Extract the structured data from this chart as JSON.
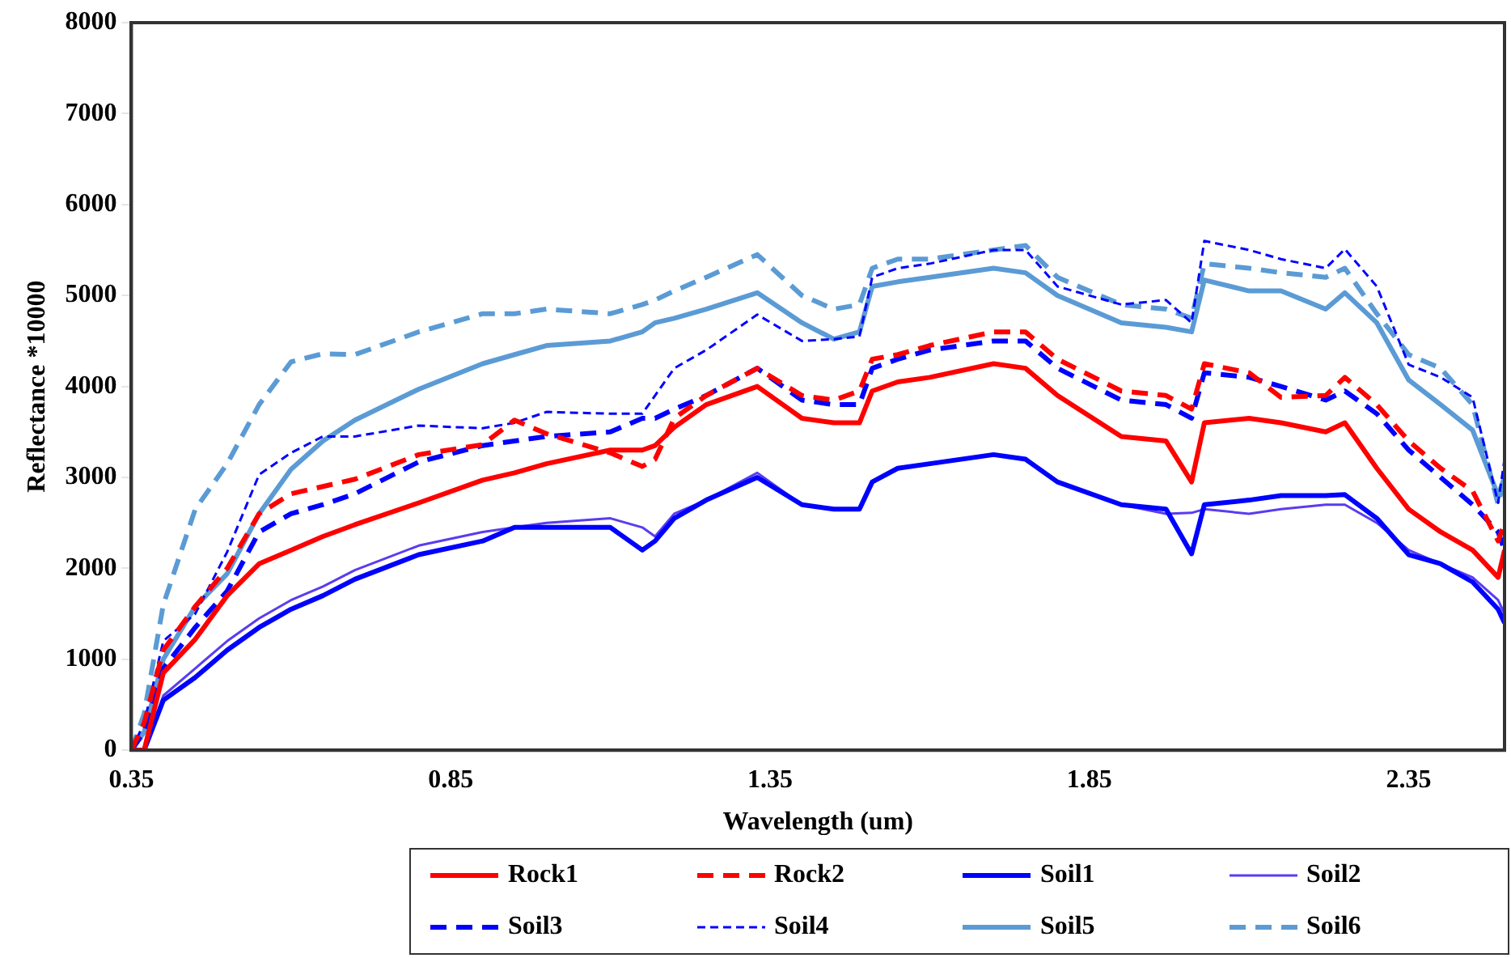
{
  "chart_data": {
    "type": "line",
    "xlabel": "Wavelength (um)",
    "ylabel": "Reflectance *10000",
    "x": [
      0.35,
      0.37,
      0.4,
      0.45,
      0.5,
      0.55,
      0.6,
      0.65,
      0.7,
      0.8,
      0.9,
      0.95,
      1.0,
      1.1,
      1.15,
      1.17,
      1.2,
      1.25,
      1.33,
      1.4,
      1.45,
      1.49,
      1.51,
      1.55,
      1.6,
      1.7,
      1.75,
      1.8,
      1.9,
      1.97,
      2.01,
      2.03,
      2.1,
      2.15,
      2.22,
      2.25,
      2.3,
      2.35,
      2.4,
      2.45,
      2.49,
      2.5
    ],
    "xlim": [
      0.35,
      2.5
    ],
    "xticks": [
      0.35,
      0.85,
      1.35,
      1.85,
      2.35
    ],
    "ylim": [
      0,
      8000
    ],
    "yticks": [
      0,
      1000,
      2000,
      3000,
      4000,
      5000,
      6000,
      7000,
      8000
    ],
    "grid": false,
    "legend": "bottom",
    "marker": "none",
    "series": [
      {
        "name": "Rock1",
        "color": "#ff0000",
        "line_style": "solid",
        "values": [
          0,
          0,
          850,
          1220,
          1700,
          2050,
          2200,
          2350,
          2480,
          2720,
          2970,
          3050,
          3150,
          3300,
          3300,
          3350,
          3550,
          3800,
          4000,
          3650,
          3600,
          3600,
          3950,
          4050,
          4100,
          4250,
          4200,
          3900,
          3450,
          3400,
          2950,
          3600,
          3650,
          3600,
          3500,
          3600,
          3100,
          2650,
          2400,
          2200,
          1900,
          2200
        ]
      },
      {
        "name": "Rock2",
        "color": "#ff0000",
        "line_style": "dashed",
        "values": [
          0,
          300,
          1100,
          1580,
          2000,
          2600,
          2820,
          2900,
          2980,
          3250,
          3360,
          3630,
          3480,
          3270,
          3120,
          3200,
          3650,
          3900,
          4200,
          3900,
          3850,
          3950,
          4300,
          4350,
          4450,
          4600,
          4600,
          4300,
          3950,
          3900,
          3750,
          4250,
          4150,
          3880,
          3900,
          4100,
          3800,
          3400,
          3100,
          2850,
          2300,
          2500
        ]
      },
      {
        "name": "Soil1",
        "color": "#0000ff",
        "line_style": "solid",
        "values": [
          0,
          0,
          550,
          800,
          1100,
          1350,
          1550,
          1700,
          1880,
          2150,
          2300,
          2450,
          2450,
          2450,
          2200,
          2300,
          2550,
          2750,
          3000,
          2700,
          2650,
          2650,
          2950,
          3100,
          3150,
          3250,
          3200,
          2950,
          2700,
          2650,
          2160,
          2700,
          2750,
          2800,
          2800,
          2810,
          2550,
          2150,
          2050,
          1850,
          1550,
          1400
        ]
      },
      {
        "name": "Soil2",
        "color": "#5a3cf0",
        "line_style": "solid",
        "values": [
          0,
          0,
          600,
          900,
          1200,
          1450,
          1650,
          1800,
          1980,
          2250,
          2400,
          2450,
          2500,
          2550,
          2450,
          2350,
          2600,
          2750,
          3050,
          2700,
          2650,
          2650,
          2950,
          3100,
          3150,
          3250,
          3200,
          2950,
          2700,
          2600,
          2610,
          2650,
          2600,
          2650,
          2700,
          2700,
          2500,
          2200,
          2050,
          1900,
          1650,
          1500
        ]
      },
      {
        "name": "Soil3",
        "color": "#0000ff",
        "line_style": "dashed",
        "values": [
          0,
          200,
          900,
          1350,
          1750,
          2400,
          2600,
          2700,
          2820,
          3170,
          3350,
          3400,
          3450,
          3500,
          3650,
          3650,
          3750,
          3900,
          4200,
          3850,
          3800,
          3800,
          4200,
          4300,
          4400,
          4500,
          4500,
          4200,
          3850,
          3800,
          3650,
          4150,
          4100,
          4000,
          3850,
          3950,
          3700,
          3300,
          3000,
          2700,
          2400,
          2200
        ]
      },
      {
        "name": "Soil4",
        "color": "#0000ff",
        "line_style": "dotted",
        "values": [
          0,
          300,
          1200,
          1500,
          2180,
          3030,
          3270,
          3450,
          3450,
          3570,
          3540,
          3600,
          3720,
          3700,
          3700,
          3900,
          4200,
          4400,
          4790,
          4500,
          4520,
          4550,
          5200,
          5300,
          5350,
          5500,
          5500,
          5100,
          4900,
          4950,
          4700,
          5600,
          5500,
          5400,
          5300,
          5510,
          5100,
          4240,
          4100,
          3880,
          2720,
          3200
        ]
      },
      {
        "name": "Soil5",
        "color": "#5b9bd5",
        "line_style": "solid",
        "values": [
          0,
          200,
          1000,
          1580,
          1940,
          2600,
          3090,
          3400,
          3630,
          3970,
          4250,
          4350,
          4450,
          4500,
          4600,
          4700,
          4750,
          4850,
          5030,
          4700,
          4520,
          4600,
          5100,
          5150,
          5200,
          5300,
          5250,
          5000,
          4700,
          4650,
          4600,
          5170,
          5050,
          5050,
          4850,
          5030,
          4700,
          4070,
          3800,
          3520,
          2800,
          3000
        ]
      },
      {
        "name": "Soil6",
        "color": "#5b9bd5",
        "line_style": "dashed",
        "values": [
          0,
          400,
          1600,
          2650,
          3150,
          3800,
          4270,
          4360,
          4350,
          4600,
          4800,
          4800,
          4850,
          4800,
          4900,
          4950,
          5050,
          5200,
          5450,
          5000,
          4850,
          4900,
          5300,
          5400,
          5400,
          5500,
          5550,
          5200,
          4900,
          4850,
          4750,
          5350,
          5300,
          5250,
          5200,
          5300,
          4800,
          4350,
          4200,
          3800,
          2700,
          3000
        ]
      }
    ]
  }
}
